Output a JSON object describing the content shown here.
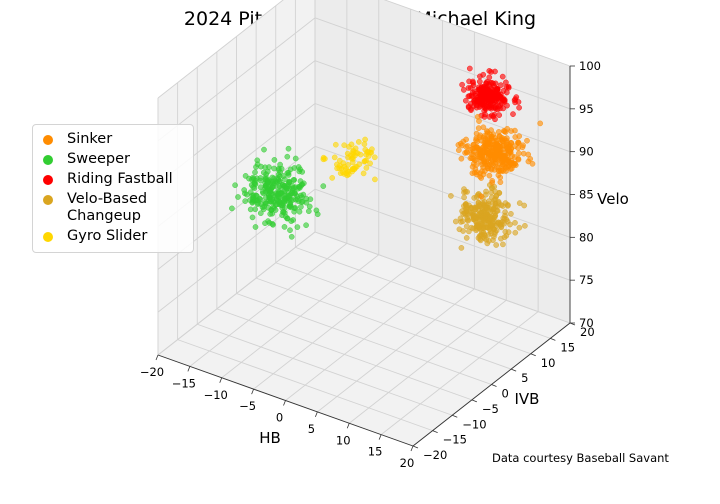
{
  "chart_data": {
    "type": "scatter3d",
    "title": "2024 Pitch Repertoire -- Michael King",
    "xlabel": "HB",
    "ylabel": "IVB",
    "zlabel": "Velo",
    "xlim": [
      -20,
      20
    ],
    "ylim": [
      -20,
      20
    ],
    "zlim": [
      70,
      100
    ],
    "xticks": [
      "−20",
      "−15",
      "−10",
      "−5",
      "0",
      "5",
      "10",
      "15",
      "20"
    ],
    "yticks": [
      "−20",
      "−15",
      "−10",
      "−5",
      "0",
      "5",
      "10",
      "15",
      "20"
    ],
    "zticks": [
      "70",
      "75",
      "80",
      "85",
      "90",
      "95",
      "100"
    ],
    "grid": true,
    "legend_position": "left",
    "annotation": "Data courtesy Baseball Savant",
    "series": [
      {
        "name": "Sinker",
        "color": "#ff8c00",
        "center": {
          "hb": 15.5,
          "ivb": 8.0,
          "velo": 93.0
        },
        "spread": {
          "hb": 1.8,
          "ivb": 1.8,
          "velo": 1.1
        },
        "count": 320
      },
      {
        "name": "Sweeper",
        "color": "#32cd32",
        "center": {
          "hb": -14.0,
          "ivb": 1.0,
          "velo": 83.0
        },
        "spread": {
          "hb": 2.3,
          "ivb": 2.2,
          "velo": 1.4
        },
        "count": 280
      },
      {
        "name": "Riding Fastball",
        "color": "#ff0000",
        "center": {
          "hb": 9.0,
          "ivb": 17.0,
          "velo": 94.5
        },
        "spread": {
          "hb": 1.4,
          "ivb": 1.4,
          "velo": 0.9
        },
        "count": 240
      },
      {
        "name": "Velo-Based\n Changeup",
        "color": "#daa520",
        "center": {
          "hb": 15.0,
          "ivb": 6.5,
          "velo": 86.0
        },
        "spread": {
          "hb": 1.8,
          "ivb": 1.6,
          "velo": 1.2
        },
        "count": 260
      },
      {
        "name": "Gyro Slider",
        "color": "#ffd700",
        "center": {
          "hb": -4.5,
          "ivb": 4.5,
          "velo": 88.0
        },
        "spread": {
          "hb": 1.5,
          "ivb": 1.6,
          "velo": 1.1
        },
        "count": 70
      }
    ]
  }
}
